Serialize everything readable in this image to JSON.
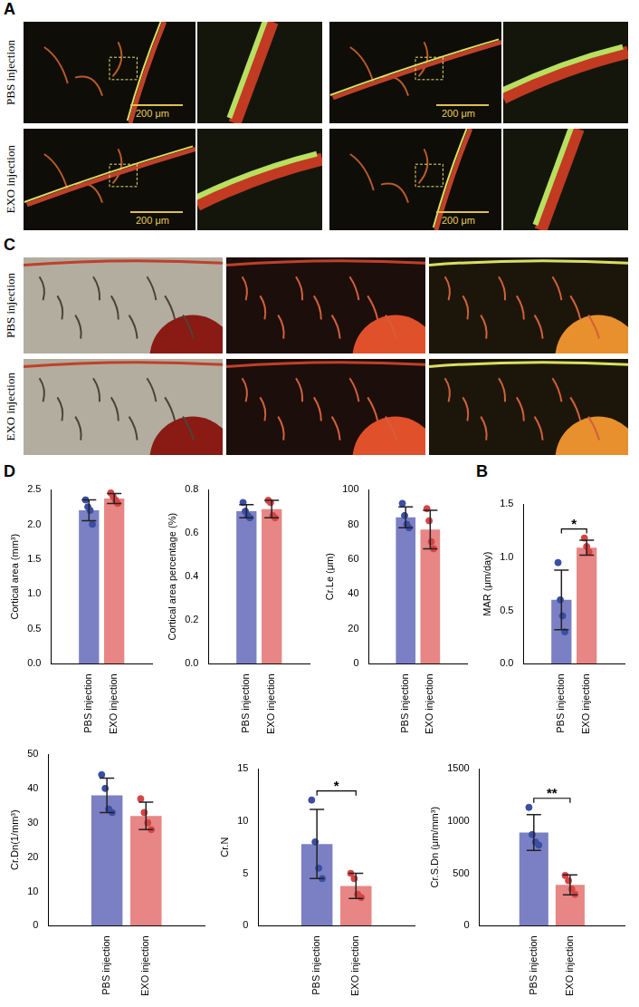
{
  "image_panels": [
    {
      "panel": "A",
      "row_labels": [
        "PBS injection",
        "EXO injection"
      ],
      "scale_bar": "200 μm"
    },
    {
      "panel": "C",
      "row_labels": [
        "PBS injection",
        "EXO injection"
      ]
    }
  ],
  "chart_data": [
    {
      "panel": "D",
      "type": "bar",
      "y_label": "Cortical area (mm³)",
      "categories": [
        "PBS injection",
        "EXO injection"
      ],
      "values": [
        2.2,
        2.37
      ],
      "error": [
        0.15,
        0.07
      ],
      "points": [
        [
          2.35,
          2.25,
          2.2,
          2.0
        ],
        [
          2.45,
          2.4,
          2.35,
          2.3
        ]
      ],
      "colors": [
        "#7b80c4",
        "#e88585"
      ],
      "grid": false,
      "ylim": [
        0,
        2.5
      ],
      "yticks": [
        {
          "value": 0,
          "label": "0.0"
        },
        {
          "value": 0.5,
          "label": "0.5"
        },
        {
          "value": 1,
          "label": "1.0"
        },
        {
          "value": 1.5,
          "label": "1.5"
        },
        {
          "value": 2,
          "label": "2.0"
        },
        {
          "value": 2.5,
          "label": "2.5"
        }
      ]
    },
    {
      "type": "bar",
      "y_label": "Cortical area percentage (%)",
      "categories": [
        "PBS injection",
        "EXO injection"
      ],
      "values": [
        0.7,
        0.71
      ],
      "error": [
        0.03,
        0.04
      ],
      "points": [
        [
          0.74,
          0.7,
          0.68,
          0.67
        ],
        [
          0.75,
          0.74,
          0.68,
          0.67
        ]
      ],
      "colors": [
        "#7b80c4",
        "#e88585"
      ],
      "grid": false,
      "ylim": [
        0,
        0.8
      ],
      "yticks": [
        {
          "value": 0,
          "label": "0.0"
        },
        {
          "value": 0.2,
          "label": "0.2"
        },
        {
          "value": 0.4,
          "label": "0.4"
        },
        {
          "value": 0.6,
          "label": "0.6"
        },
        {
          "value": 0.8,
          "label": "0.8"
        }
      ]
    },
    {
      "type": "bar",
      "y_label": "Cr.Le (μm)",
      "categories": [
        "PBS injection",
        "EXO injection"
      ],
      "values": [
        84,
        77
      ],
      "error": [
        6,
        11
      ],
      "points": [
        [
          92,
          85,
          80,
          78
        ],
        [
          89,
          82,
          70,
          66
        ]
      ],
      "colors": [
        "#7b80c4",
        "#e88585"
      ],
      "grid": false,
      "ylim": [
        0,
        100
      ],
      "yticks": [
        0,
        20,
        40,
        60,
        80,
        100
      ]
    },
    {
      "panel": "B",
      "type": "bar",
      "y_label": "MAR (μm/day)",
      "categories": [
        "PBS injection",
        "EXO injection"
      ],
      "values": [
        0.6,
        1.09
      ],
      "error": [
        0.28,
        0.07
      ],
      "points": [
        [
          0.95,
          0.6,
          0.45,
          0.3
        ],
        [
          1.18,
          1.1,
          1.05
        ]
      ],
      "colors": [
        "#7b80c4",
        "#e88585"
      ],
      "grid": false,
      "significance": "*",
      "ylim": [
        0,
        1.5
      ],
      "yticks": [
        {
          "value": 0,
          "label": "0.0"
        },
        {
          "value": 0.5,
          "label": "0.5"
        },
        {
          "value": 1,
          "label": "1.0"
        },
        {
          "value": 1.5,
          "label": "1.5"
        }
      ]
    },
    {
      "type": "bar",
      "y_label": "Cr.Dn(1/mm³)",
      "categories": [
        "PBS injection",
        "EXO injection"
      ],
      "values": [
        38,
        32
      ],
      "error": [
        5,
        4
      ],
      "points": [
        [
          44,
          40,
          34,
          33
        ],
        [
          37,
          33,
          30,
          28
        ]
      ],
      "colors": [
        "#7b80c4",
        "#e88585"
      ],
      "grid": false,
      "ylim": [
        0,
        50
      ],
      "yticks": [
        0,
        10,
        20,
        30,
        40,
        50
      ]
    },
    {
      "type": "bar",
      "y_label": "Cr.N",
      "categories": [
        "PBS injection",
        "EXO injection"
      ],
      "values": [
        7.8,
        3.8
      ],
      "error": [
        3.3,
        1.2
      ],
      "points": [
        [
          12,
          8,
          5.5,
          4.5
        ],
        [
          5,
          4.5,
          3,
          2.7
        ]
      ],
      "colors": [
        "#7b80c4",
        "#e88585"
      ],
      "grid": false,
      "significance": "*",
      "ylim": [
        0,
        15
      ],
      "yticks": [
        0,
        5,
        10,
        15
      ]
    },
    {
      "type": "bar",
      "y_label": "Cr.S.Dn (μm/mm³)",
      "categories": [
        "PBS injection",
        "EXO injection"
      ],
      "values": [
        890,
        390
      ],
      "error": [
        170,
        95
      ],
      "points": [
        [
          1130,
          870,
          800,
          770
        ],
        [
          480,
          430,
          350,
          300
        ]
      ],
      "colors": [
        "#7b80c4",
        "#e88585"
      ],
      "grid": false,
      "significance": "**",
      "ylim": [
        0,
        1500
      ],
      "yticks": [
        0,
        500,
        1000,
        1500
      ]
    }
  ]
}
